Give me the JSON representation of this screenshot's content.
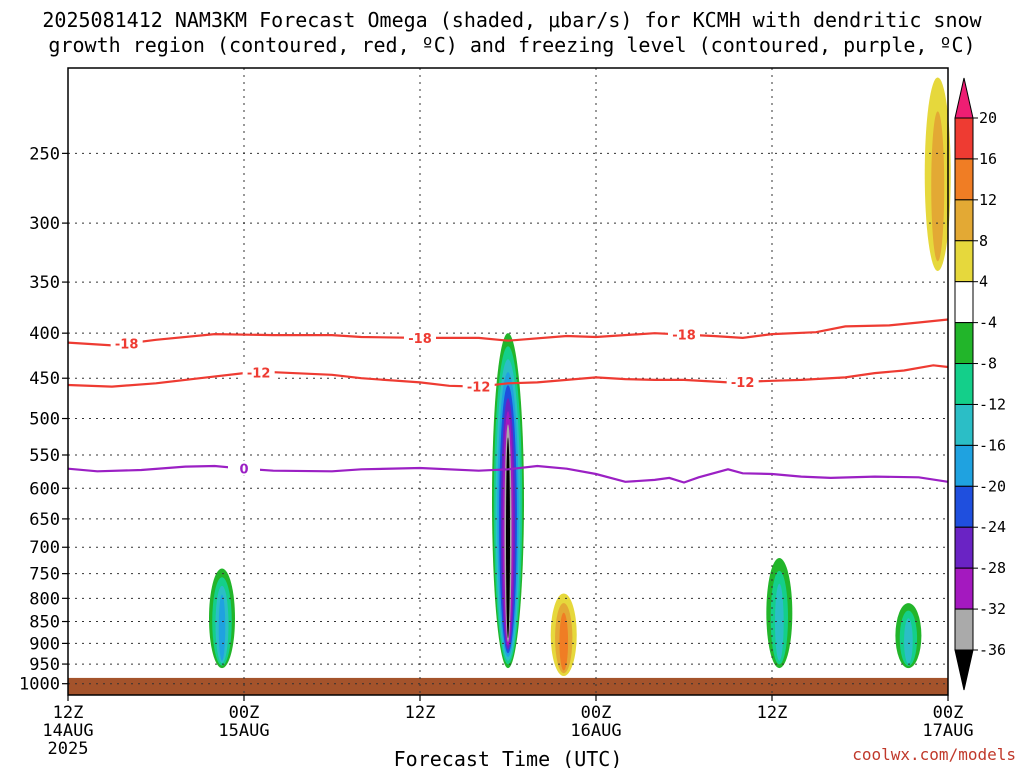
{
  "chart_data": {
    "type": "heatmap",
    "title_line1": "2025081412 NAM3KM Forecast Omega (shaded, μbar/s) for KCMH with dendritic snow",
    "title_line2": "growth region (contoured, red, ºC) and freezing level (contoured, purple, ºC)",
    "xlabel": "Forecast Time (UTC)",
    "credit": "coolwx.com/models",
    "x_ticks": [
      {
        "t": 0,
        "line1": "12Z",
        "line2": "14AUG",
        "line3": "2025"
      },
      {
        "t": 12,
        "line1": "00Z",
        "line2": "15AUG",
        "line3": ""
      },
      {
        "t": 24,
        "line1": "12Z",
        "line2": "",
        "line3": ""
      },
      {
        "t": 36,
        "line1": "00Z",
        "line2": "16AUG",
        "line3": ""
      },
      {
        "t": 48,
        "line1": "12Z",
        "line2": "",
        "line3": ""
      },
      {
        "t": 60,
        "line1": "00Z",
        "line2": "17AUG",
        "line3": ""
      }
    ],
    "x_range_hours": [
      0,
      60
    ],
    "y_axis": "pressure (hPa), log scale",
    "y_range": [
      1030,
      200
    ],
    "y_ticks": [
      250,
      300,
      350,
      400,
      450,
      500,
      550,
      600,
      650,
      700,
      750,
      800,
      850,
      900,
      950,
      1000
    ],
    "grid": true,
    "colorbar": {
      "levels": [
        "20",
        "16",
        "12",
        "8",
        "4",
        "-4",
        "-8",
        "-12",
        "-16",
        "-20",
        "-24",
        "-28",
        "-32",
        "-36"
      ],
      "colors": [
        "#ee1e73",
        "#ee3b32",
        "#f07d24",
        "#e3a934",
        "#e6d83c",
        "#ffffff",
        "#22b52a",
        "#14cf8a",
        "#2bbec6",
        "#1fa2e0",
        "#1f4fde",
        "#6a23c4",
        "#a419bf",
        "#aaaaaa",
        "#000000"
      ]
    },
    "contours": [
      {
        "label": "-18",
        "color": "#ee3b32",
        "points": [
          [
            0,
            410
          ],
          [
            3,
            413
          ],
          [
            6,
            407
          ],
          [
            10,
            401
          ],
          [
            14,
            402
          ],
          [
            18,
            402
          ],
          [
            20,
            404
          ],
          [
            24,
            405
          ],
          [
            28,
            405
          ],
          [
            30,
            408
          ],
          [
            34,
            403
          ],
          [
            36,
            404
          ],
          [
            40,
            400
          ],
          [
            44,
            403
          ],
          [
            46,
            405
          ],
          [
            48,
            401
          ],
          [
            51,
            399
          ],
          [
            53,
            393
          ],
          [
            56,
            392
          ],
          [
            58,
            389
          ],
          [
            60,
            386
          ]
        ]
      },
      {
        "label": "-12",
        "color": "#ee3b32",
        "points": [
          [
            0,
            458
          ],
          [
            3,
            460
          ],
          [
            6,
            456
          ],
          [
            9,
            450
          ],
          [
            12,
            444
          ],
          [
            14,
            443
          ],
          [
            18,
            446
          ],
          [
            20,
            450
          ],
          [
            24,
            455
          ],
          [
            26,
            459
          ],
          [
            28,
            460
          ],
          [
            30,
            456
          ],
          [
            32,
            455
          ],
          [
            36,
            449
          ],
          [
            38,
            451
          ],
          [
            40,
            452
          ],
          [
            42,
            452
          ],
          [
            45,
            455
          ],
          [
            48,
            453
          ],
          [
            50,
            452
          ],
          [
            53,
            449
          ],
          [
            55,
            444
          ],
          [
            57,
            441
          ],
          [
            59,
            435
          ],
          [
            60,
            437
          ]
        ]
      },
      {
        "label": "0",
        "color": "#9b20c4",
        "points": [
          [
            0,
            570
          ],
          [
            2,
            574
          ],
          [
            5,
            572
          ],
          [
            8,
            567
          ],
          [
            10,
            566
          ],
          [
            12,
            570
          ],
          [
            14,
            573
          ],
          [
            18,
            574
          ],
          [
            20,
            571
          ],
          [
            24,
            569
          ],
          [
            28,
            573
          ],
          [
            30,
            571
          ],
          [
            32,
            566
          ],
          [
            34,
            570
          ],
          [
            36,
            578
          ],
          [
            38,
            590
          ],
          [
            40,
            587
          ],
          [
            41,
            584
          ],
          [
            42,
            591
          ],
          [
            43,
            583
          ],
          [
            45,
            571
          ],
          [
            46,
            577
          ],
          [
            48,
            578
          ],
          [
            50,
            582
          ],
          [
            52,
            584
          ],
          [
            55,
            582
          ],
          [
            58,
            583
          ],
          [
            60,
            590
          ]
        ]
      }
    ],
    "omega_features": [
      {
        "desc": "ascent cell near 00Z 15AUG",
        "t_center": 10.5,
        "p_top": 740,
        "p_bottom": 960,
        "min_value": -16
      },
      {
        "desc": "strong ascent plume",
        "t_center": 30.0,
        "p_top": 400,
        "p_bottom": 960,
        "min_value": -36
      },
      {
        "desc": "descent cell",
        "t_center": 33.8,
        "p_top": 790,
        "p_bottom": 980,
        "max_value": 12
      },
      {
        "desc": "ascent cells 12Z 16AUG",
        "t_center": 48.5,
        "p_top": 720,
        "p_bottom": 960,
        "min_value": -12
      },
      {
        "desc": "ascent cell near 00Z 17AUG",
        "t_center": 57.3,
        "p_top": 810,
        "p_bottom": 960,
        "min_value": -12
      },
      {
        "desc": "upper descent",
        "t_center": 59.3,
        "p_top": 205,
        "p_bottom": 340,
        "max_value": 8
      }
    ],
    "ground": {
      "color": "#a4532b",
      "p_top": 985
    }
  }
}
